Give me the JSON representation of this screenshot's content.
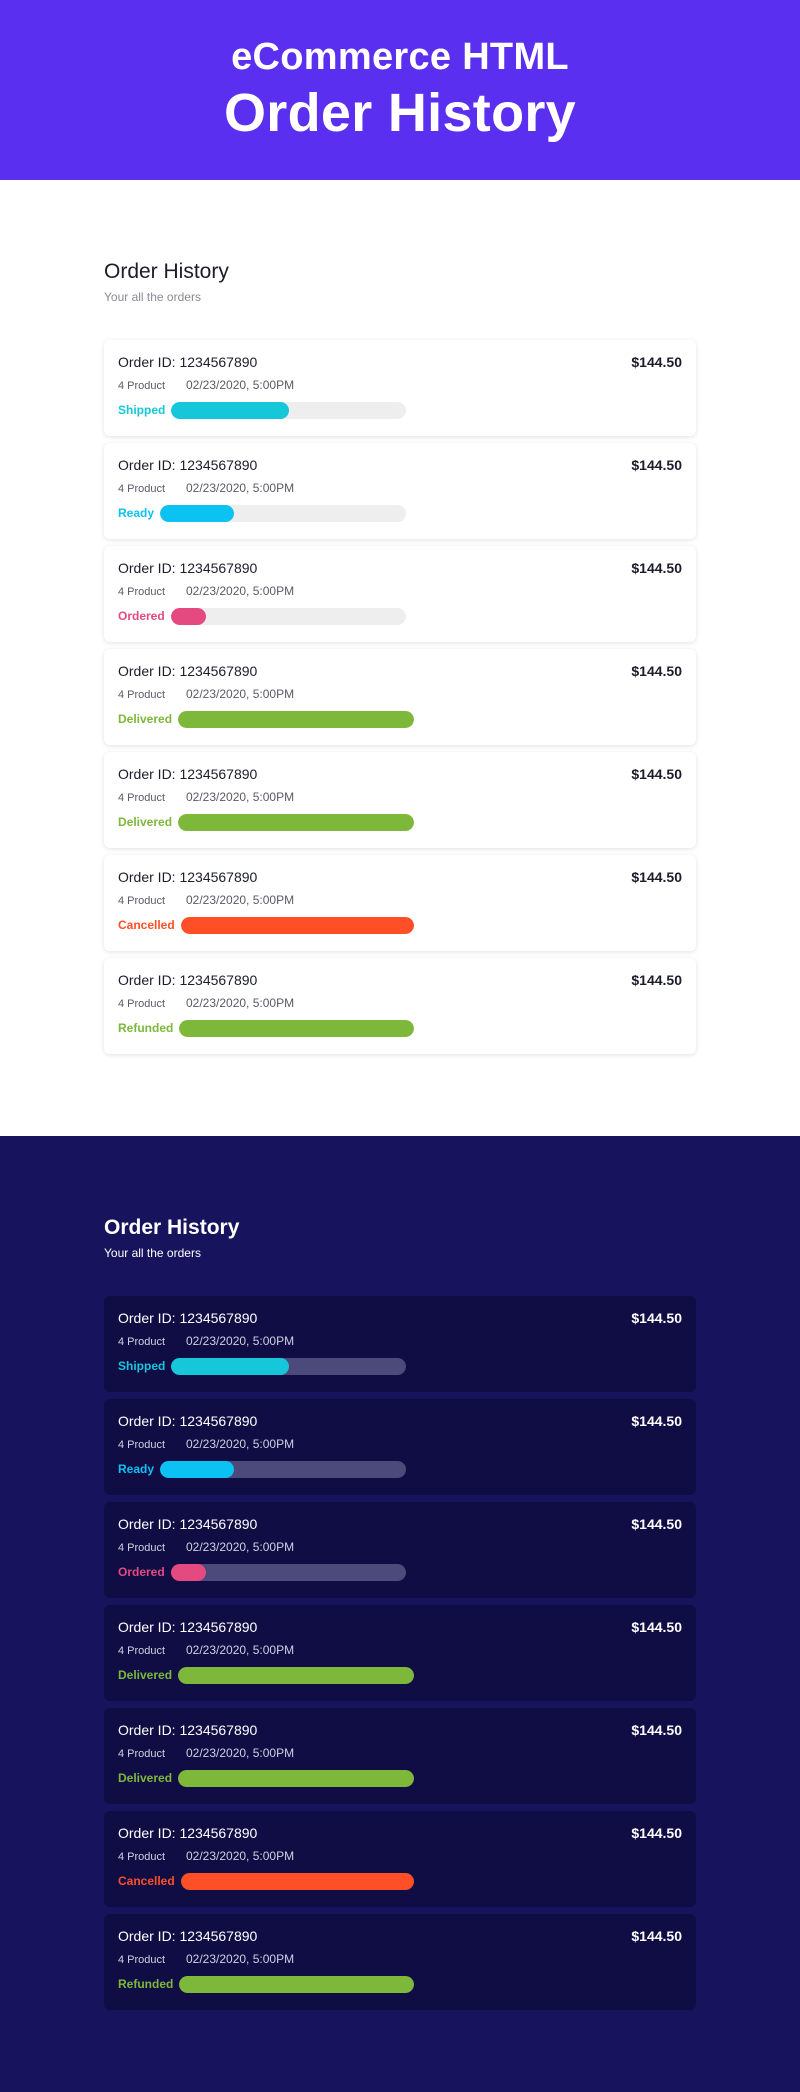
{
  "hero": {
    "subtitle": "eCommerce HTML",
    "title": "Order History"
  },
  "colors": {
    "hero_bg": "#5b2ff0",
    "dark_bg": "#17135c",
    "dark_card": "#100d45",
    "shipped": "#16c7d9",
    "ready": "#0bc2f3",
    "ordered": "#e44a80",
    "delivered": "#7db83a",
    "cancelled": "#ff4f26",
    "refunded": "#7db83a"
  },
  "sections": [
    {
      "theme": "light",
      "title": "Order History",
      "subtitle": "Your all the orders",
      "orders": [
        {
          "order_id": "Order ID: 1234567890",
          "price": "$144.50",
          "products": "4 Product",
          "datetime": "02/23/2020, 5:00PM",
          "status": "Shipped",
          "status_color": "#16c7d9",
          "progress": 0.5
        },
        {
          "order_id": "Order ID: 1234567890",
          "price": "$144.50",
          "products": "4 Product",
          "datetime": "02/23/2020, 5:00PM",
          "status": "Ready",
          "status_color": "#0bc2f3",
          "progress": 0.3
        },
        {
          "order_id": "Order ID: 1234567890",
          "price": "$144.50",
          "products": "4 Product",
          "datetime": "02/23/2020, 5:00PM",
          "status": "Ordered",
          "status_color": "#e44a80",
          "progress": 0.15
        },
        {
          "order_id": "Order ID: 1234567890",
          "price": "$144.50",
          "products": "4 Product",
          "datetime": "02/23/2020, 5:00PM",
          "status": "Delivered",
          "status_color": "#7db83a",
          "progress": 1.0
        },
        {
          "order_id": "Order ID: 1234567890",
          "price": "$144.50",
          "products": "4 Product",
          "datetime": "02/23/2020, 5:00PM",
          "status": "Delivered",
          "status_color": "#7db83a",
          "progress": 1.0
        },
        {
          "order_id": "Order ID: 1234567890",
          "price": "$144.50",
          "products": "4 Product",
          "datetime": "02/23/2020, 5:00PM",
          "status": "Cancelled",
          "status_color": "#ff4f26",
          "progress": 1.0
        },
        {
          "order_id": "Order ID: 1234567890",
          "price": "$144.50",
          "products": "4 Product",
          "datetime": "02/23/2020, 5:00PM",
          "status": "Refunded",
          "status_color": "#7db83a",
          "progress": 1.0
        }
      ]
    },
    {
      "theme": "dark",
      "title": "Order History",
      "subtitle": "Your all the orders",
      "orders": [
        {
          "order_id": "Order ID: 1234567890",
          "price": "$144.50",
          "products": "4 Product",
          "datetime": "02/23/2020, 5:00PM",
          "status": "Shipped",
          "status_color": "#16c7d9",
          "progress": 0.5
        },
        {
          "order_id": "Order ID: 1234567890",
          "price": "$144.50",
          "products": "4 Product",
          "datetime": "02/23/2020, 5:00PM",
          "status": "Ready",
          "status_color": "#0bc2f3",
          "progress": 0.3
        },
        {
          "order_id": "Order ID: 1234567890",
          "price": "$144.50",
          "products": "4 Product",
          "datetime": "02/23/2020, 5:00PM",
          "status": "Ordered",
          "status_color": "#e44a80",
          "progress": 0.15
        },
        {
          "order_id": "Order ID: 1234567890",
          "price": "$144.50",
          "products": "4 Product",
          "datetime": "02/23/2020, 5:00PM",
          "status": "Delivered",
          "status_color": "#7db83a",
          "progress": 1.0
        },
        {
          "order_id": "Order ID: 1234567890",
          "price": "$144.50",
          "products": "4 Product",
          "datetime": "02/23/2020, 5:00PM",
          "status": "Delivered",
          "status_color": "#7db83a",
          "progress": 1.0
        },
        {
          "order_id": "Order ID: 1234567890",
          "price": "$144.50",
          "products": "4 Product",
          "datetime": "02/23/2020, 5:00PM",
          "status": "Cancelled",
          "status_color": "#ff4f26",
          "progress": 1.0
        },
        {
          "order_id": "Order ID: 1234567890",
          "price": "$144.50",
          "products": "4 Product",
          "datetime": "02/23/2020, 5:00PM",
          "status": "Refunded",
          "status_color": "#7db83a",
          "progress": 1.0
        }
      ]
    }
  ]
}
